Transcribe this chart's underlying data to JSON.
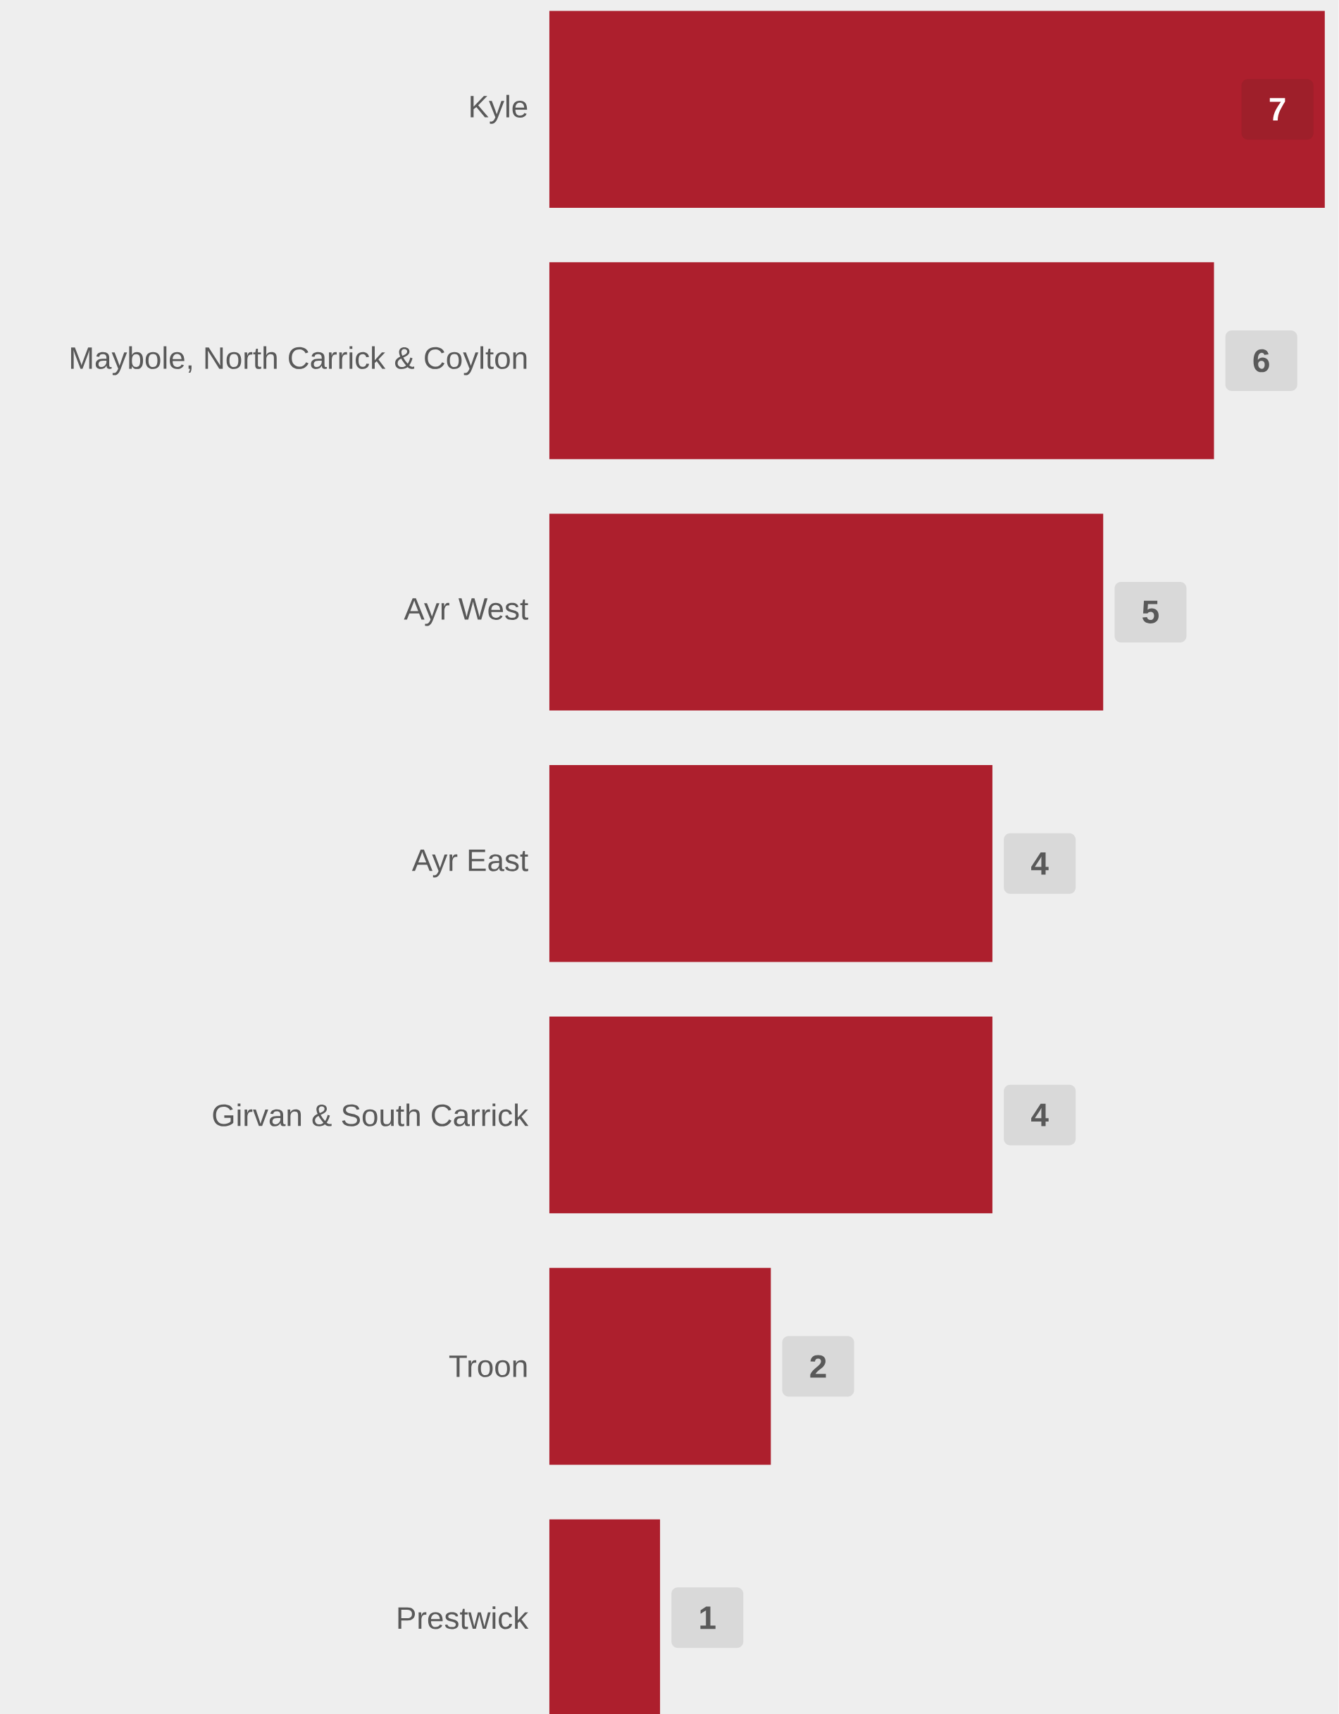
{
  "chart_data": {
    "type": "bar",
    "orientation": "horizontal",
    "categories": [
      "Kyle",
      "Maybole, North Carrick & Coylton",
      "Ayr West",
      "Ayr East",
      "Girvan & South Carrick",
      "Troon",
      "Prestwick"
    ],
    "values": [
      7,
      6,
      5,
      4,
      4,
      2,
      1
    ],
    "color": "#ad1f2d",
    "data_labels": true,
    "tick_labels": "y"
  }
}
